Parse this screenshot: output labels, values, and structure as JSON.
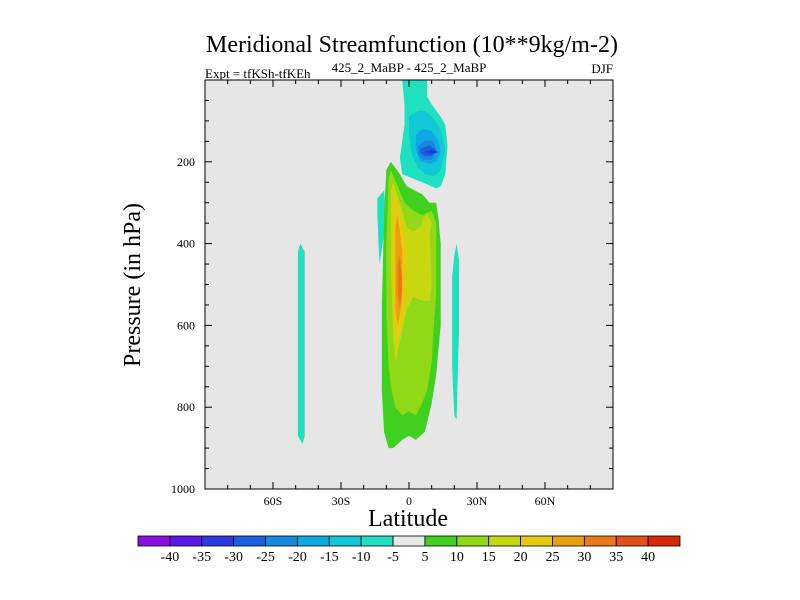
{
  "chart_data": {
    "type": "heatmap",
    "title": "Meridional Streamfunction (10**9kg/m-2)",
    "left_subtitle": "Expt = tfKSh-tfKEh",
    "center_subtitle": "425_2_MaBP - 425_2_MaBP",
    "right_subtitle": "DJF",
    "xlabel": "Latitude",
    "ylabel": "Pressure (in hPa)",
    "xlim": [
      -90,
      90
    ],
    "ylim": [
      0,
      1000
    ],
    "y_reversed": true,
    "x_ticks": [
      {
        "value": -60,
        "label": "60S"
      },
      {
        "value": -30,
        "label": "30S"
      },
      {
        "value": 0,
        "label": "0"
      },
      {
        "value": 30,
        "label": "30N"
      },
      {
        "value": 60,
        "label": "60N"
      }
    ],
    "y_ticks": [
      {
        "value": 200,
        "label": "200"
      },
      {
        "value": 400,
        "label": "400"
      },
      {
        "value": 600,
        "label": "600"
      },
      {
        "value": 800,
        "label": "800"
      },
      {
        "value": 1000,
        "label": "1000"
      }
    ],
    "background_color": "#e6e6e6",
    "colorbar": {
      "levels": [
        -40,
        -35,
        -30,
        -25,
        -20,
        -15,
        -10,
        -5,
        5,
        10,
        15,
        20,
        25,
        30,
        35,
        40
      ],
      "labels": [
        "-40",
        "-35",
        "-30",
        "-25",
        "-20",
        "-15",
        "-10",
        "-5",
        "5",
        "10",
        "15",
        "20",
        "25",
        "30",
        "35",
        "40"
      ],
      "colors": [
        "#8a10e0",
        "#5a18e8",
        "#2a3ae0",
        "#1a60e0",
        "#1888e0",
        "#10a8e0",
        "#10c8d8",
        "#20e0c0",
        "#e6e6e6",
        "#40d020",
        "#90d818",
        "#c8d810",
        "#e8c810",
        "#e8a010",
        "#e87818",
        "#e05018",
        "#d82808"
      ]
    },
    "regions": [
      {
        "value": -5,
        "lat": [
          -49,
          -48,
          -46,
          -46,
          -47,
          -49
        ],
        "p": [
          420,
          400,
          420,
          870,
          890,
          870
        ]
      },
      {
        "value": -5,
        "lat": [
          -14,
          -11,
          -10,
          -13,
          -14
        ],
        "p": [
          290,
          270,
          340,
          450,
          330
        ]
      },
      {
        "value": -5,
        "lat": [
          20,
          21,
          22,
          22,
          21,
          20,
          19,
          19
        ],
        "p": [
          430,
          400,
          440,
          620,
          830,
          820,
          700,
          480
        ]
      },
      {
        "value": -5,
        "lat": [
          -3,
          8,
          8,
          10,
          14,
          16,
          17,
          16,
          14,
          12,
          8,
          -3,
          -4,
          -3,
          -2,
          -2
        ],
        "p": [
          0,
          0,
          40,
          60,
          90,
          110,
          160,
          230,
          260,
          265,
          255,
          230,
          190,
          150,
          110,
          60
        ]
      },
      {
        "value": -10,
        "lat": [
          0,
          4,
          7,
          11,
          14,
          16,
          14,
          11,
          7,
          4,
          1,
          0
        ],
        "p": [
          90,
          75,
          75,
          95,
          120,
          170,
          220,
          235,
          230,
          215,
          180,
          130
        ]
      },
      {
        "value": -15,
        "lat": [
          3,
          6,
          10,
          13,
          14,
          12,
          9,
          5,
          3
        ],
        "p": [
          135,
          120,
          125,
          150,
          175,
          200,
          205,
          198,
          170
        ]
      },
      {
        "value": -20,
        "lat": [
          4,
          7,
          11,
          12,
          10,
          6,
          4
        ],
        "p": [
          162,
          148,
          150,
          175,
          195,
          195,
          180
        ]
      },
      {
        "value": -25,
        "lat": [
          5,
          9,
          12,
          10,
          7,
          5
        ],
        "p": [
          168,
          160,
          170,
          186,
          186,
          178
        ]
      },
      {
        "value": -30,
        "lat": [
          7,
          10,
          13,
          10,
          7
        ],
        "p": [
          175,
          170,
          176,
          182,
          178
        ]
      },
      {
        "value": 5,
        "lat": [
          -10,
          -8,
          -4,
          -1,
          6,
          9,
          12,
          13,
          14,
          14,
          12,
          10,
          7,
          3,
          0,
          -3,
          -7,
          -9,
          -11,
          -12,
          -12,
          -11
        ],
        "p": [
          220,
          200,
          230,
          260,
          280,
          300,
          300,
          340,
          400,
          600,
          720,
          790,
          860,
          880,
          870,
          880,
          900,
          900,
          860,
          760,
          560,
          330
        ]
      },
      {
        "value": 10,
        "lat": [
          -9,
          -8,
          -5,
          -2,
          2,
          6,
          10,
          12,
          12,
          11,
          10,
          8,
          5,
          3,
          0,
          -3,
          -6,
          -8,
          -9,
          -10,
          -10
        ],
        "p": [
          240,
          220,
          260,
          300,
          320,
          330,
          320,
          350,
          520,
          600,
          690,
          760,
          800,
          820,
          810,
          820,
          800,
          750,
          700,
          570,
          400
        ]
      },
      {
        "value": 15,
        "lat": [
          -8,
          -7,
          -4,
          -1,
          2,
          5,
          7,
          9,
          10,
          9,
          6,
          2,
          -1,
          -4,
          -6,
          -7,
          -8
        ],
        "p": [
          270,
          250,
          300,
          360,
          370,
          360,
          330,
          360,
          500,
          540,
          540,
          530,
          560,
          640,
          690,
          620,
          460
        ]
      },
      {
        "value": 20,
        "lat": [
          -7,
          -6,
          -3,
          -1,
          -1,
          -3,
          -5,
          -7,
          -7
        ],
        "p": [
          330,
          280,
          350,
          420,
          530,
          590,
          640,
          580,
          440
        ]
      },
      {
        "value": 25,
        "lat": [
          -6,
          -5,
          -3,
          -3,
          -5,
          -6,
          -6
        ],
        "p": [
          360,
          330,
          420,
          540,
          600,
          560,
          440
        ]
      },
      {
        "value": 30,
        "lat": [
          -5,
          -4,
          -3,
          -4,
          -5
        ],
        "p": [
          450,
          430,
          500,
          560,
          520
        ]
      },
      {
        "value": 15,
        "lat": [
          6,
          8,
          10,
          9,
          7
        ],
        "p": [
          340,
          328,
          350,
          375,
          365
        ]
      }
    ]
  },
  "colors": {
    "frame": "#000000",
    "tick_text": "#000000"
  }
}
